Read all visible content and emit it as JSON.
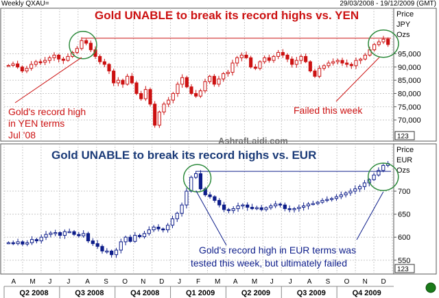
{
  "header": {
    "left": "Weekly QXAU=",
    "right": "29/03/2008 - 19/12/2009 (GMT)"
  },
  "watermark": "AshrafLaidi.com",
  "colors": {
    "red": "#cc1111",
    "navy": "#0d1d8a",
    "blue_title": "#1b3b78",
    "circle": "#2e8b3d",
    "grid": "#c8c8c8",
    "status": "#1a7a1a"
  },
  "status_icon": "green-status-dot",
  "time_axis": {
    "months": [
      "A",
      "M",
      "J",
      "J",
      "A",
      "S",
      "O",
      "N",
      "D",
      "J",
      "F",
      "M",
      "A",
      "M",
      "J",
      "J",
      "A",
      "S",
      "O",
      "N",
      "D"
    ],
    "quarters": [
      "Q2 2008",
      "Q3 2008",
      "Q4 2008",
      "Q1 2009",
      "Q2 2009",
      "Q3 2009",
      "Q4 2009"
    ]
  },
  "chart_data": [
    {
      "type": "candlestick",
      "title": "Gold UNABLE to break its record highs vs. YEN",
      "ylabel": "Price JPY Ozs",
      "ylim": [
        62000,
        106000
      ],
      "yticks": [
        70000,
        75000,
        80000,
        85000,
        90000,
        95000
      ],
      "ytick_labels": [
        "70,000",
        "75,000",
        "80,000",
        "85,000",
        "90,000",
        "95,000"
      ],
      "last_value_label": "123",
      "series_close": [
        90600,
        91200,
        90000,
        88500,
        89500,
        91000,
        92000,
        91800,
        92500,
        93500,
        94500,
        93000,
        92500,
        94000,
        95500,
        97000,
        100000,
        99000,
        96500,
        94000,
        92000,
        91000,
        88500,
        84000,
        85000,
        83500,
        86500,
        84000,
        80000,
        78000,
        81500,
        76000,
        68000,
        73000,
        76000,
        77500,
        80000,
        83500,
        86000,
        82500,
        80000,
        79000,
        81000,
        84500,
        86500,
        83500,
        85500,
        87500,
        88000,
        91500,
        93500,
        94500,
        93500,
        90000,
        89500,
        92000,
        93500,
        92500,
        94000,
        95500,
        94500,
        93000,
        91000,
        92500,
        94000,
        92000,
        88500,
        86500,
        89500,
        90500,
        91500,
        92000,
        92500,
        91500,
        91000,
        90500,
        92500,
        93000,
        94500,
        96500,
        98500,
        99500,
        100500,
        98500
      ],
      "annotations": [
        {
          "text": "Gold's record high in YEN terms Jul '08"
        },
        {
          "text": "Failed this week"
        }
      ]
    },
    {
      "type": "candlestick",
      "title": "Gold UNABLE to break its record highs vs. EUR",
      "ylabel": "Price EUR Ozs",
      "ylim": [
        520,
        770
      ],
      "yticks": [
        550,
        600,
        650,
        700
      ],
      "ytick_labels": [
        "550",
        "600",
        "650",
        "700"
      ],
      "last_value_label": "123",
      "series_close": [
        588,
        586,
        590,
        585,
        588,
        595,
        592,
        600,
        606,
        609,
        610,
        604,
        612,
        612,
        606,
        603,
        608,
        592,
        586,
        580,
        570,
        570,
        562,
        572,
        590,
        600,
        591,
        604,
        601,
        608,
        616,
        622,
        618,
        616,
        626,
        640,
        652,
        670,
        700,
        730,
        738,
        705,
        692,
        688,
        680,
        670,
        660,
        658,
        662,
        668,
        670,
        665,
        662,
        664,
        660,
        664,
        668,
        672,
        670,
        662,
        660,
        662,
        665,
        668,
        672,
        673,
        676,
        680,
        682,
        684,
        688,
        692,
        696,
        700,
        705,
        710,
        718,
        725,
        735,
        745,
        756,
        760
      ],
      "annotations": [
        {
          "text": "Gold's record high in EUR terms was tested this week, but ultimately failed"
        }
      ]
    }
  ]
}
